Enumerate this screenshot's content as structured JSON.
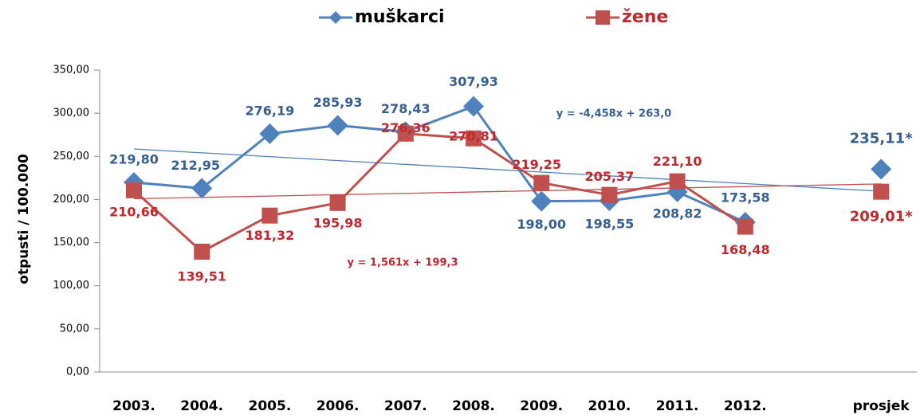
{
  "chart_data": {
    "type": "line",
    "categories": [
      "2003.",
      "2004.",
      "2005.",
      "2006.",
      "2007.",
      "2008.",
      "2009.",
      "2010.",
      "2011.",
      "2012.",
      null,
      "prosjek"
    ],
    "y_axis_label": "otpusti / 100.000",
    "ylim": [
      0,
      350
    ],
    "yticks": [
      {
        "value": 0,
        "label": "0,00"
      },
      {
        "value": 50,
        "label": "50,00"
      },
      {
        "value": 100,
        "label": "100,00"
      },
      {
        "value": 150,
        "label": "150,00"
      },
      {
        "value": 200,
        "label": "200,00"
      },
      {
        "value": 250,
        "label": "250,00"
      },
      {
        "value": 300,
        "label": "300,00"
      },
      {
        "value": 350,
        "label": "350,00"
      }
    ],
    "grid": false,
    "legend": "top",
    "series": [
      {
        "name": "muškarci",
        "color": "#4f81bd",
        "label_color": "#376092",
        "marker": "diamond",
        "values": [
          219.8,
          212.95,
          276.19,
          285.93,
          278.43,
          307.93,
          198.0,
          198.55,
          208.82,
          173.58,
          null,
          235.11
        ],
        "value_labels": [
          "219,80",
          "212,95",
          "276,19",
          "285,93",
          "278,43",
          "307,93",
          "198,00",
          "198,55",
          "208,82",
          "173,58",
          null,
          "235,11*"
        ],
        "trendline": {
          "slope": -4.458,
          "intercept": 263.0,
          "label": "y = -4,458x + 263,0"
        }
      },
      {
        "name": "žene",
        "color": "#c0504d",
        "label_color": "#c0282d",
        "marker": "square",
        "values": [
          210.66,
          139.51,
          181.32,
          195.98,
          276.36,
          270.81,
          219.25,
          205.37,
          221.1,
          168.48,
          null,
          209.01
        ],
        "value_labels": [
          "210,66",
          "139,51",
          "181,32",
          "195,98",
          "276,36",
          "270,81",
          "219,25",
          "205,37",
          "221,10",
          "168,48",
          null,
          "209,01*"
        ],
        "trendline": {
          "slope": 1.561,
          "intercept": 199.3,
          "label": "y = 1,561x + 199,3"
        }
      }
    ]
  }
}
